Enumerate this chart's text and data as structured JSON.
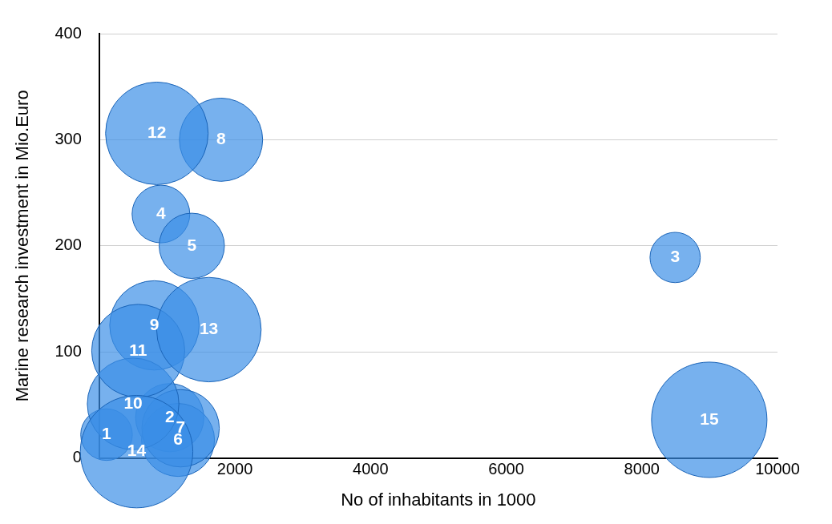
{
  "chart_data": {
    "type": "bubble",
    "xlabel": "No of inhabitants in 1000",
    "ylabel": "Marine research investment in Mio.Euro",
    "x": [
      108,
      1040,
      8491,
      910,
      1365,
      1162,
      1200,
      1796,
      814,
      500,
      575,
      850,
      1617,
      551,
      8994
    ],
    "values": [
      22,
      38,
      189,
      230,
      200,
      17,
      28,
      300,
      125,
      51,
      101,
      306,
      121,
      6,
      36
    ],
    "sizes": [
      0.2,
      0.35,
      0.19,
      0.25,
      0.32,
      0.4,
      0.45,
      0.52,
      0.6,
      0.63,
      0.65,
      0.79,
      0.82,
      0.95,
      1
    ],
    "annotations": [
      {
        "text": "1",
        "x": 108,
        "y": 22
      },
      {
        "text": "2",
        "x": 1040,
        "y": 38
      },
      {
        "text": "3",
        "x": 8491,
        "y": 189
      },
      {
        "text": "4",
        "x": 910,
        "y": 230
      },
      {
        "text": "5",
        "x": 1365,
        "y": 200
      },
      {
        "text": "6",
        "x": 1162,
        "y": 17
      },
      {
        "text": "7",
        "x": 1200,
        "y": 28
      },
      {
        "text": "8",
        "x": 1796,
        "y": 300
      },
      {
        "text": "9",
        "x": 814,
        "y": 125
      },
      {
        "text": "10",
        "x": 500,
        "y": 51
      },
      {
        "text": "11",
        "x": 575,
        "y": 101
      },
      {
        "text": "12",
        "x": 850,
        "y": 306
      },
      {
        "text": "13",
        "x": 1617,
        "y": 121
      },
      {
        "text": "14",
        "x": 551,
        "y": 6
      },
      {
        "text": "15",
        "x": 8994,
        "y": 36
      }
    ],
    "color": "#3a8ee6",
    "xlim": [
      0,
      10000
    ],
    "xticks": [
      2000,
      4000,
      6000,
      8000,
      10000
    ],
    "ylim": [
      0,
      400
    ],
    "yticks": [
      0,
      100,
      200,
      300,
      400
    ],
    "grid": "y",
    "legend": false
  }
}
